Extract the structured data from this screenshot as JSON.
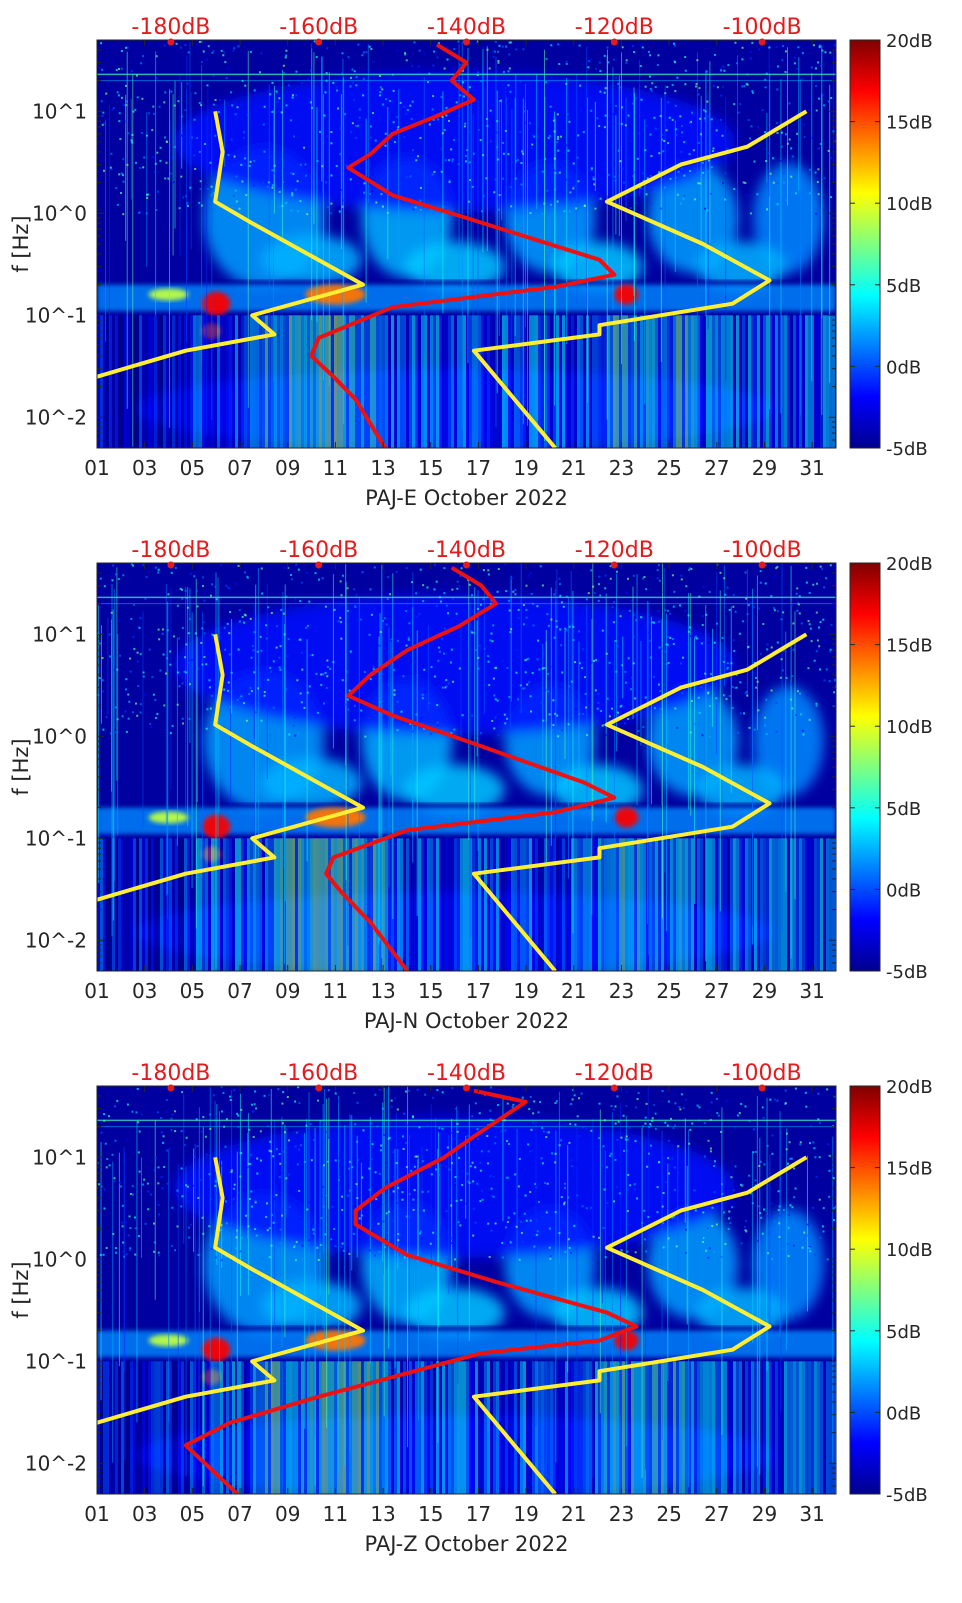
{
  "figure": {
    "colorbar": {
      "range": [
        -5,
        20
      ],
      "tick_labels": [
        "20dB",
        "15dB",
        "10dB",
        "5dB",
        "0dB",
        "-5dB"
      ],
      "tick_values": [
        20,
        15,
        10,
        5,
        0,
        -5
      ],
      "colormap": "jet"
    },
    "top_axis": {
      "color": "#e41a1c",
      "range": [
        -190,
        -90
      ],
      "tick_labels": [
        "-180dB",
        "-160dB",
        "-140dB",
        "-120dB",
        "-100dB"
      ],
      "tick_values": [
        -180,
        -160,
        -140,
        -120,
        -100
      ]
    },
    "colors": {
      "noise_model": "#ffee33",
      "psd_curve": "#ee1111",
      "top_axis_text": "#e41a1c"
    }
  },
  "chart_data": [
    {
      "type": "heatmap",
      "station": "PAJ-E",
      "xlabel": "PAJ-E October 2022",
      "ylabel": "f [Hz]",
      "x_range": [
        1,
        32
      ],
      "y_range": [
        0.005,
        50
      ],
      "y_scale": "log",
      "x_tick_labels": [
        "01",
        "03",
        "05",
        "07",
        "09",
        "11",
        "13",
        "15",
        "17",
        "19",
        "21",
        "23",
        "25",
        "27",
        "29",
        "31"
      ],
      "y_tick_labels": [
        "10^1",
        "10^0",
        "10^-1",
        "10^-2"
      ],
      "colorbar_label": "dB",
      "series": [
        {
          "role": "low-noise model",
          "color": "#ffee33",
          "points": [
            [
              -192,
              0.005
            ],
            [
              -196,
              0.015
            ],
            [
              -190,
              0.025
            ],
            [
              -178,
              0.045
            ],
            [
              -166,
              0.065
            ],
            [
              -169,
              0.1
            ],
            [
              -154,
              0.2
            ],
            [
              -169,
              0.8
            ],
            [
              -174,
              1.3
            ],
            [
              -173,
              4
            ],
            [
              -174,
              10
            ]
          ]
        },
        {
          "role": "high-noise model",
          "color": "#ffee33",
          "points": [
            [
              -128,
              0.005
            ],
            [
              -139,
              0.045
            ],
            [
              -122,
              0.065
            ],
            [
              -122,
              0.08
            ],
            [
              -104,
              0.13
            ],
            [
              -99,
              0.22
            ],
            [
              -108,
              0.5
            ],
            [
              -121,
              1.3
            ],
            [
              -111,
              3
            ],
            [
              -102,
              4.5
            ],
            [
              -94,
              10
            ]
          ]
        },
        {
          "role": "station PSD",
          "color": "#ee1111",
          "points": [
            [
              -151,
              0.005
            ],
            [
              -155,
              0.015
            ],
            [
              -158,
              0.025
            ],
            [
              -161,
              0.04
            ],
            [
              -160,
              0.06
            ],
            [
              -150,
              0.12
            ],
            [
              -128,
              0.19
            ],
            [
              -120,
              0.25
            ],
            [
              -122,
              0.35
            ],
            [
              -140,
              0.9
            ],
            [
              -150,
              1.5
            ],
            [
              -156,
              2.8
            ],
            [
              -153,
              3.8
            ],
            [
              -150,
              6
            ],
            [
              -144,
              9
            ],
            [
              -139,
              13
            ],
            [
              -142,
              20
            ],
            [
              -140,
              30
            ],
            [
              -144,
              45
            ]
          ]
        }
      ]
    },
    {
      "type": "heatmap",
      "station": "PAJ-N",
      "xlabel": "PAJ-N October 2022",
      "ylabel": "f [Hz]",
      "x_range": [
        1,
        32
      ],
      "y_range": [
        0.005,
        50
      ],
      "y_scale": "log",
      "x_tick_labels": [
        "01",
        "03",
        "05",
        "07",
        "09",
        "11",
        "13",
        "15",
        "17",
        "19",
        "21",
        "23",
        "25",
        "27",
        "29",
        "31"
      ],
      "y_tick_labels": [
        "10^1",
        "10^0",
        "10^-1",
        "10^-2"
      ],
      "colorbar_label": "dB",
      "series": [
        {
          "role": "low-noise model",
          "color": "#ffee33",
          "points": [
            [
              -192,
              0.005
            ],
            [
              -196,
              0.015
            ],
            [
              -190,
              0.025
            ],
            [
              -178,
              0.045
            ],
            [
              -166,
              0.065
            ],
            [
              -169,
              0.1
            ],
            [
              -154,
              0.2
            ],
            [
              -169,
              0.8
            ],
            [
              -174,
              1.3
            ],
            [
              -173,
              4
            ],
            [
              -174,
              10
            ]
          ]
        },
        {
          "role": "high-noise model",
          "color": "#ffee33",
          "points": [
            [
              -128,
              0.005
            ],
            [
              -139,
              0.045
            ],
            [
              -122,
              0.065
            ],
            [
              -122,
              0.08
            ],
            [
              -104,
              0.13
            ],
            [
              -99,
              0.22
            ],
            [
              -108,
              0.5
            ],
            [
              -121,
              1.3
            ],
            [
              -111,
              3
            ],
            [
              -102,
              4.5
            ],
            [
              -94,
              10
            ]
          ]
        },
        {
          "role": "station PSD",
          "color": "#ee1111",
          "points": [
            [
              -148,
              0.005
            ],
            [
              -153,
              0.015
            ],
            [
              -157,
              0.03
            ],
            [
              -159,
              0.045
            ],
            [
              -158,
              0.065
            ],
            [
              -148,
              0.12
            ],
            [
              -128,
              0.18
            ],
            [
              -120,
              0.25
            ],
            [
              -124,
              0.35
            ],
            [
              -140,
              0.9
            ],
            [
              -150,
              1.6
            ],
            [
              -156,
              2.5
            ],
            [
              -153,
              4
            ],
            [
              -148,
              7
            ],
            [
              -141,
              12
            ],
            [
              -136,
              20
            ],
            [
              -138,
              30
            ],
            [
              -142,
              45
            ]
          ]
        }
      ]
    },
    {
      "type": "heatmap",
      "station": "PAJ-Z",
      "xlabel": "PAJ-Z October 2022",
      "ylabel": "f [Hz]",
      "x_range": [
        1,
        32
      ],
      "y_range": [
        0.005,
        50
      ],
      "y_scale": "log",
      "x_tick_labels": [
        "01",
        "03",
        "05",
        "07",
        "09",
        "11",
        "13",
        "15",
        "17",
        "19",
        "21",
        "23",
        "25",
        "27",
        "29",
        "31"
      ],
      "y_tick_labels": [
        "10^1",
        "10^0",
        "10^-1",
        "10^-2"
      ],
      "colorbar_label": "dB",
      "series": [
        {
          "role": "low-noise model",
          "color": "#ffee33",
          "points": [
            [
              -192,
              0.005
            ],
            [
              -196,
              0.015
            ],
            [
              -190,
              0.025
            ],
            [
              -178,
              0.045
            ],
            [
              -166,
              0.065
            ],
            [
              -169,
              0.1
            ],
            [
              -154,
              0.2
            ],
            [
              -169,
              0.8
            ],
            [
              -174,
              1.3
            ],
            [
              -173,
              4
            ],
            [
              -174,
              10
            ]
          ]
        },
        {
          "role": "high-noise model",
          "color": "#ffee33",
          "points": [
            [
              -128,
              0.005
            ],
            [
              -139,
              0.045
            ],
            [
              -122,
              0.065
            ],
            [
              -122,
              0.08
            ],
            [
              -104,
              0.13
            ],
            [
              -99,
              0.22
            ],
            [
              -108,
              0.5
            ],
            [
              -121,
              1.3
            ],
            [
              -111,
              3
            ],
            [
              -102,
              4.5
            ],
            [
              -94,
              10
            ]
          ]
        },
        {
          "role": "station PSD",
          "color": "#ee1111",
          "points": [
            [
              -171,
              0.005
            ],
            [
              -178,
              0.015
            ],
            [
              -172,
              0.025
            ],
            [
              -160,
              0.045
            ],
            [
              -150,
              0.07
            ],
            [
              -138,
              0.12
            ],
            [
              -122,
              0.16
            ],
            [
              -117,
              0.22
            ],
            [
              -121,
              0.3
            ],
            [
              -136,
              0.6
            ],
            [
              -148,
              1.1
            ],
            [
              -155,
              2.2
            ],
            [
              -155,
              3
            ],
            [
              -151,
              5
            ],
            [
              -143,
              10
            ],
            [
              -139,
              16
            ],
            [
              -135,
              25
            ],
            [
              -132,
              35
            ],
            [
              -139,
              45
            ]
          ]
        }
      ]
    }
  ]
}
